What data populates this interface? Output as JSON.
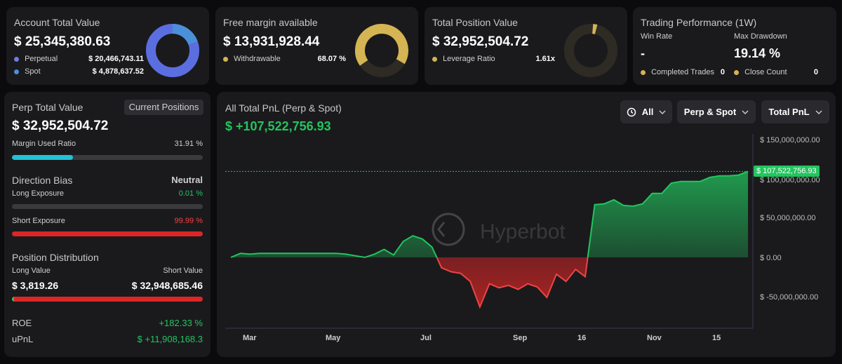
{
  "account": {
    "title": "Account Total Value",
    "value": "$ 25,345,380.63",
    "rows": [
      {
        "label": "Perpetual",
        "value": "$ 20,466,743.11",
        "color": "#6d7fe0"
      },
      {
        "label": "Spot",
        "value": "$ 4,878,637.52",
        "color": "#4a90d9"
      }
    ]
  },
  "free_margin": {
    "title": "Free margin available",
    "value": "$ 13,931,928.44",
    "withdrawable_label": "Withdrawable",
    "withdrawable_value": "68.07 %",
    "withdrawable_fraction": 0.6807,
    "color": "#d4b453"
  },
  "total_position": {
    "title": "Total Position Value",
    "value": "$ 32,952,504.72",
    "leverage_label": "Leverage Ratio",
    "leverage_value": "1.61x",
    "color": "#d4b453"
  },
  "trading_perf": {
    "title": "Trading Performance (1W)",
    "win_rate_label": "Win Rate",
    "win_rate_value": "-",
    "max_drawdown_label": "Max Drawdown",
    "max_drawdown_value": "19.14 %",
    "completed_trades_label": "Completed Trades",
    "completed_trades_value": "0",
    "close_count_label": "Close Count",
    "close_count_value": "0"
  },
  "perp": {
    "title": "Perp Total Value",
    "current_positions_button": "Current Positions",
    "value": "$ 32,952,504.72",
    "margin_used_label": "Margin Used Ratio",
    "margin_used_value": "31.91 %",
    "margin_used_fraction": 0.3191,
    "direction_bias_label": "Direction Bias",
    "direction_bias_value": "Neutral",
    "long_exposure_label": "Long Exposure",
    "long_exposure_value": "0.01 %",
    "short_exposure_label": "Short Exposure",
    "short_exposure_value": "99.99 %",
    "short_exposure_fraction": 0.9999,
    "position_distribution_label": "Position Distribution",
    "long_value_label": "Long Value",
    "short_value_label": "Short Value",
    "long_value": "$ 3,819.26",
    "short_value": "$ 32,948,685.46",
    "roe_label": "ROE",
    "roe_value": "+182.33 %",
    "upnl_label": "uPnL",
    "upnl_value": "$ +11,908,168.3"
  },
  "pnl_panel": {
    "title": "All Total PnL (Perp & Spot)",
    "value": "$ +107,522,756.93",
    "watermark": "Hyperbot",
    "filters": {
      "range": "All",
      "scope": "Perp & Spot",
      "metric": "Total PnL"
    },
    "current_label": "$ 107,522,756.93"
  },
  "chart_data": {
    "type": "area",
    "title": "All Total PnL (Perp & Spot)",
    "x_tick_labels": [
      "Mar",
      "May",
      "Jul",
      "Sep",
      "16",
      "Nov",
      "15"
    ],
    "y_tick_labels": [
      "$ 150,000,000.00",
      "$ 100,000,000.00",
      "$ 50,000,000.00",
      "$ 0.00",
      "$ -50,000,000.00"
    ],
    "ylim": [
      -75000000,
      150000000
    ],
    "positive_color": "#22c55e",
    "negative_color": "#ef4444",
    "values": [
      0,
      5000000,
      4000000,
      5000000,
      5000000,
      5000000,
      5000000,
      5000000,
      5000000,
      5000000,
      5000000,
      5000000,
      4000000,
      2000000,
      0,
      4000000,
      10000000,
      3000000,
      20000000,
      27000000,
      23000000,
      13000000,
      -13000000,
      -18000000,
      -20000000,
      -30000000,
      -62000000,
      -33000000,
      -38000000,
      -35000000,
      -40000000,
      -33000000,
      -37000000,
      -50000000,
      -21000000,
      -30000000,
      -15000000,
      -24000000,
      66000000,
      67000000,
      72000000,
      65000000,
      64000000,
      67000000,
      80000000,
      80000000,
      93000000,
      95000000,
      95000000,
      95000000,
      100000000,
      102000000,
      102000000,
      103000000,
      107522756.93
    ]
  }
}
